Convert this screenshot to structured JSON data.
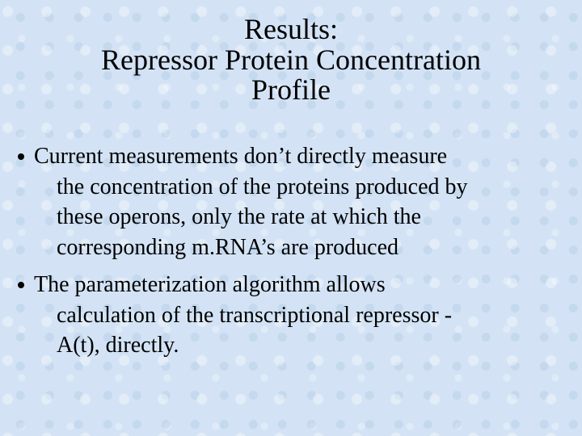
{
  "title": {
    "lines": [
      "Results:",
      "Repressor Protein Concentration",
      "Profile"
    ]
  },
  "bullets": [
    {
      "lines": [
        "Current measurements don’t directly measure",
        "the concentration of the proteins produced by",
        "these operons, only the rate at which the",
        "corresponding m.RNA’s are produced"
      ]
    },
    {
      "lines": [
        "The parameterization algorithm allows",
        "calculation of the transcriptional repressor -",
        "A(t), directly."
      ]
    }
  ]
}
